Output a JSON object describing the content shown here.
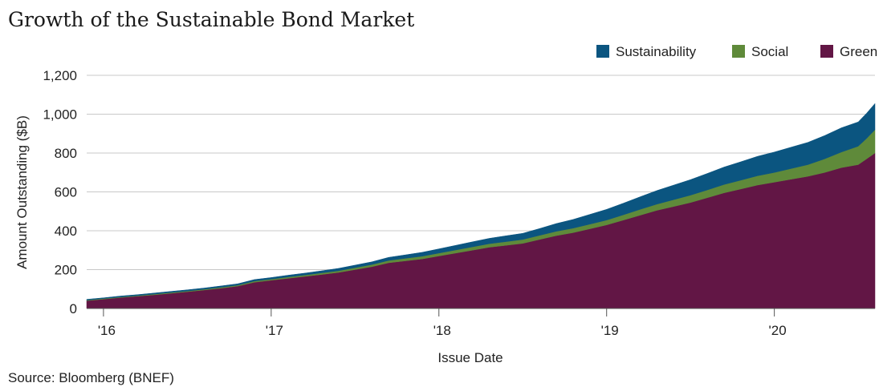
{
  "chart_data": {
    "type": "area",
    "stacked": true,
    "title": "Growth of the Sustainable Bond Market",
    "xlabel": "Issue Date",
    "ylabel": "Amount Outstanding ($B)",
    "ylim": [
      0,
      1200
    ],
    "yticks": [
      0,
      200,
      400,
      600,
      800,
      1000,
      1200
    ],
    "ytick_labels": [
      "0",
      "200",
      "400",
      "600",
      "800",
      "1,000",
      "1,200"
    ],
    "xlim": [
      2015.9,
      2020.6
    ],
    "xticks": [
      2016,
      2017,
      2018,
      2019,
      2020
    ],
    "xtick_labels": [
      "'16",
      "'17",
      "'18",
      "'19",
      "'20"
    ],
    "grid": true,
    "legend_position": "top-right",
    "source": "Source: Bloomberg (BNEF)",
    "x": [
      2015.9,
      2016.0,
      2016.1,
      2016.2,
      2016.3,
      2016.4,
      2016.5,
      2016.6,
      2016.7,
      2016.8,
      2016.9,
      2017.0,
      2017.1,
      2017.2,
      2017.3,
      2017.4,
      2017.5,
      2017.6,
      2017.7,
      2017.8,
      2017.9,
      2018.0,
      2018.1,
      2018.2,
      2018.3,
      2018.4,
      2018.5,
      2018.6,
      2018.7,
      2018.8,
      2018.9,
      2019.0,
      2019.1,
      2019.2,
      2019.3,
      2019.4,
      2019.5,
      2019.6,
      2019.7,
      2019.8,
      2019.9,
      2020.0,
      2020.1,
      2020.2,
      2020.3,
      2020.4,
      2020.5,
      2020.55,
      2020.6
    ],
    "series": [
      {
        "name": "Green",
        "color": "#621645",
        "values": [
          40,
          48,
          56,
          63,
          70,
          78,
          86,
          95,
          104,
          115,
          135,
          145,
          155,
          165,
          175,
          185,
          200,
          215,
          235,
          245,
          255,
          270,
          285,
          300,
          315,
          325,
          335,
          355,
          375,
          390,
          410,
          430,
          455,
          480,
          505,
          525,
          545,
          570,
          595,
          615,
          635,
          650,
          665,
          680,
          700,
          725,
          740,
          770,
          800
        ]
      },
      {
        "name": "Social",
        "color": "#5f8a3a",
        "values": [
          3,
          3,
          3,
          3,
          4,
          4,
          4,
          4,
          5,
          5,
          6,
          6,
          7,
          7,
          8,
          9,
          10,
          11,
          12,
          13,
          14,
          15,
          16,
          17,
          18,
          19,
          20,
          21,
          22,
          23,
          24,
          25,
          27,
          30,
          32,
          35,
          38,
          40,
          43,
          45,
          48,
          50,
          55,
          60,
          70,
          80,
          95,
          105,
          120
        ]
      },
      {
        "name": "Sustainability",
        "color": "#0b5580",
        "values": [
          4,
          4,
          5,
          5,
          5,
          6,
          6,
          6,
          7,
          7,
          8,
          8,
          9,
          10,
          11,
          12,
          13,
          14,
          16,
          18,
          20,
          22,
          24,
          26,
          28,
          30,
          32,
          35,
          40,
          45,
          50,
          55,
          60,
          65,
          70,
          75,
          80,
          85,
          90,
          95,
          100,
          105,
          110,
          115,
          120,
          125,
          125,
          130,
          135
        ]
      }
    ],
    "legend_order": [
      "Sustainability",
      "Social",
      "Green"
    ]
  }
}
